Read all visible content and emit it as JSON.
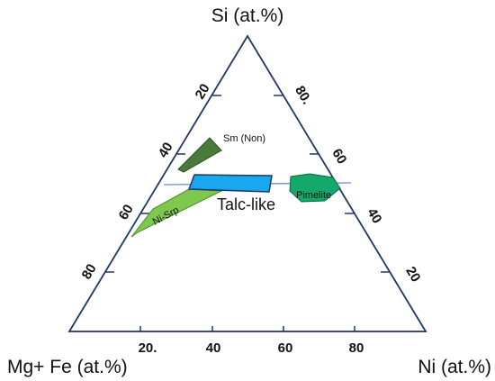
{
  "apices": {
    "top": "Si (at.%)",
    "left": "Mg+ Fe (at.%)",
    "right": "Ni (at.%)"
  },
  "ticks": {
    "left_edge": [
      "20",
      "40",
      "60",
      "80"
    ],
    "right_edge": [
      "80.",
      "60",
      "40",
      "20"
    ],
    "bottom_edge": [
      "20.",
      "40",
      "60",
      "80"
    ]
  },
  "regions": {
    "smectite": {
      "label": "Sm (Non)",
      "color": "#4a7a3a"
    },
    "talc": {
      "label": "Talc-like",
      "color": "#19a8f0"
    },
    "serpentine": {
      "label": "Ni-Srp",
      "color": "#7ec850"
    },
    "pimelite": {
      "label": "Pimelite",
      "color": "#14a86a"
    }
  },
  "colors": {
    "frame": "#1f3864",
    "guide_line": "#6f8fd6"
  }
}
